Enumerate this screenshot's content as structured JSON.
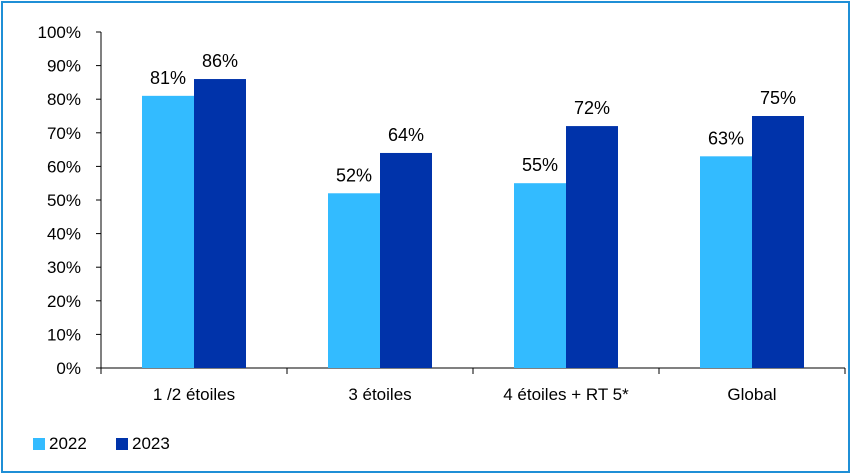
{
  "chart_data": {
    "type": "bar",
    "categories": [
      "1 /2 étoiles",
      "3 étoiles",
      "4 étoiles + RT 5*",
      "Global"
    ],
    "series": [
      {
        "name": "2022",
        "values": [
          81,
          52,
          55,
          63
        ],
        "labels": [
          "81%",
          "52%",
          "55%",
          "63%"
        ],
        "color": "#33bbff"
      },
      {
        "name": "2023",
        "values": [
          86,
          64,
          72,
          75
        ],
        "labels": [
          "86%",
          "64%",
          "72%",
          "75%"
        ],
        "color": "#0033aa"
      }
    ],
    "ylim": [
      0,
      100
    ],
    "yticks": [
      "0%",
      "10%",
      "20%",
      "30%",
      "40%",
      "50%",
      "60%",
      "70%",
      "80%",
      "90%",
      "100%"
    ],
    "grid": false,
    "legend": "bottom-left",
    "border_color": "#1f8fd6"
  }
}
